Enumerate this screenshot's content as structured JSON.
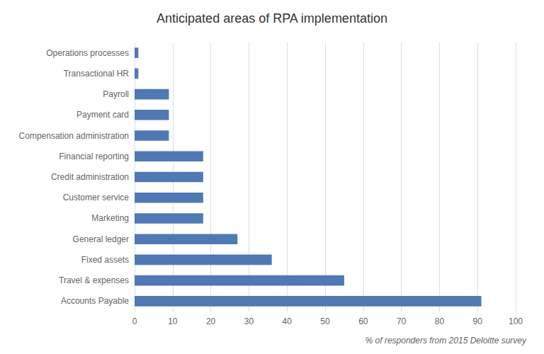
{
  "chart_data": {
    "type": "bar",
    "orientation": "horizontal",
    "title": "Anticipated areas of RPA implementation",
    "xlabel": "% of responders from 2015 Deloitte survey",
    "categories": [
      "Accounts Payable",
      "Travel & expenses",
      "Fixed assets",
      "General ledger",
      "Marketing",
      "Customer service",
      "Credit administration",
      "Financial reporting",
      "Compensation administration",
      "Payment card",
      "Payroll",
      "Transactional HR",
      "Operations processes"
    ],
    "values": [
      91,
      55,
      36,
      27,
      18,
      18,
      18,
      18,
      9,
      9,
      9,
      1,
      1
    ],
    "color": "#4f79b5",
    "xlim": [
      0,
      100
    ],
    "xticks": [
      0,
      10,
      20,
      30,
      40,
      50,
      60,
      70,
      80,
      90,
      100
    ],
    "grid": true
  }
}
